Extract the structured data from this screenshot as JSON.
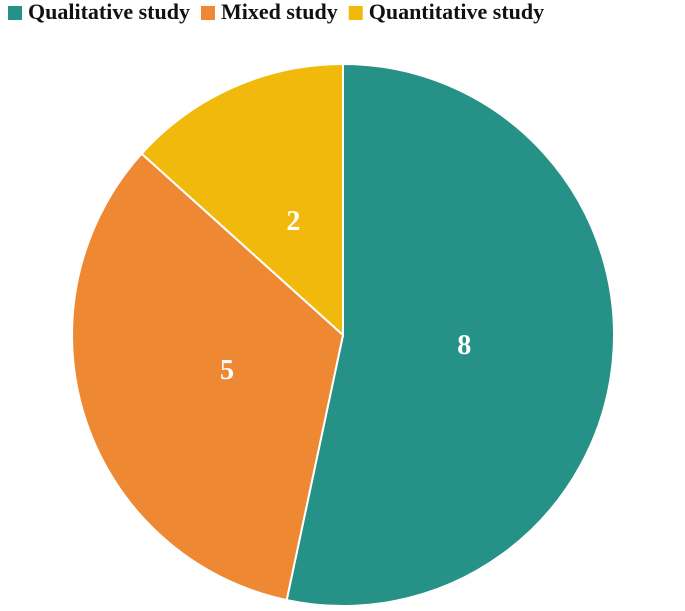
{
  "chart_data": {
    "type": "pie",
    "categories": [
      "Qualitative study",
      "Mixed study",
      "Quantitative study"
    ],
    "values": [
      8,
      5,
      2
    ],
    "colors": [
      "#259187",
      "#ee8833",
      "#f0b90b"
    ],
    "legend": "top"
  }
}
